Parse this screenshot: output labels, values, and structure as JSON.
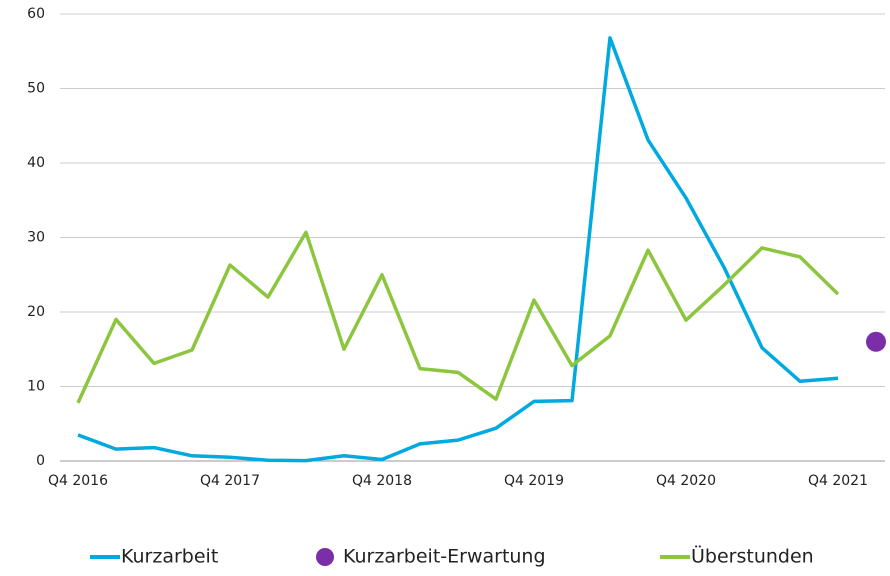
{
  "chart_data": {
    "type": "line",
    "categories": [
      "Q4 2016",
      null,
      null,
      null,
      "Q4 2017",
      null,
      null,
      null,
      "Q4 2018",
      null,
      null,
      null,
      "Q4 2019",
      null,
      null,
      null,
      "Q4 2020",
      null,
      null,
      null,
      "Q4 2021",
      null
    ],
    "series": [
      {
        "name": "Kurzarbeit",
        "color": "#00a9e0",
        "values": [
          3.5,
          1.6,
          1.8,
          0.7,
          0.5,
          0.1,
          0.05,
          0.7,
          0.2,
          2.3,
          2.8,
          4.4,
          8.0,
          8.1,
          56.8,
          43.1,
          35.3,
          26,
          15.2,
          10.7,
          11.1,
          null
        ]
      },
      {
        "name": "Kurzarbeit-Erwartung",
        "color": "#7a2fa8",
        "values": [
          null,
          null,
          null,
          null,
          null,
          null,
          null,
          null,
          null,
          null,
          null,
          null,
          null,
          null,
          null,
          null,
          null,
          null,
          null,
          null,
          null,
          16
        ]
      },
      {
        "name": "Überstunden",
        "color": "#8cc63f",
        "values": [
          7.8,
          19,
          13.1,
          14.9,
          26.3,
          22,
          30.7,
          15,
          25,
          12.4,
          11.9,
          8.3,
          21.6,
          12.8,
          16.8,
          28.3,
          18.9,
          23.6,
          28.6,
          27.4,
          22.4,
          null
        ]
      }
    ],
    "ylim": [
      0,
      60
    ],
    "yticks": [
      0,
      10,
      20,
      30,
      40,
      50,
      60
    ],
    "grid": true
  }
}
